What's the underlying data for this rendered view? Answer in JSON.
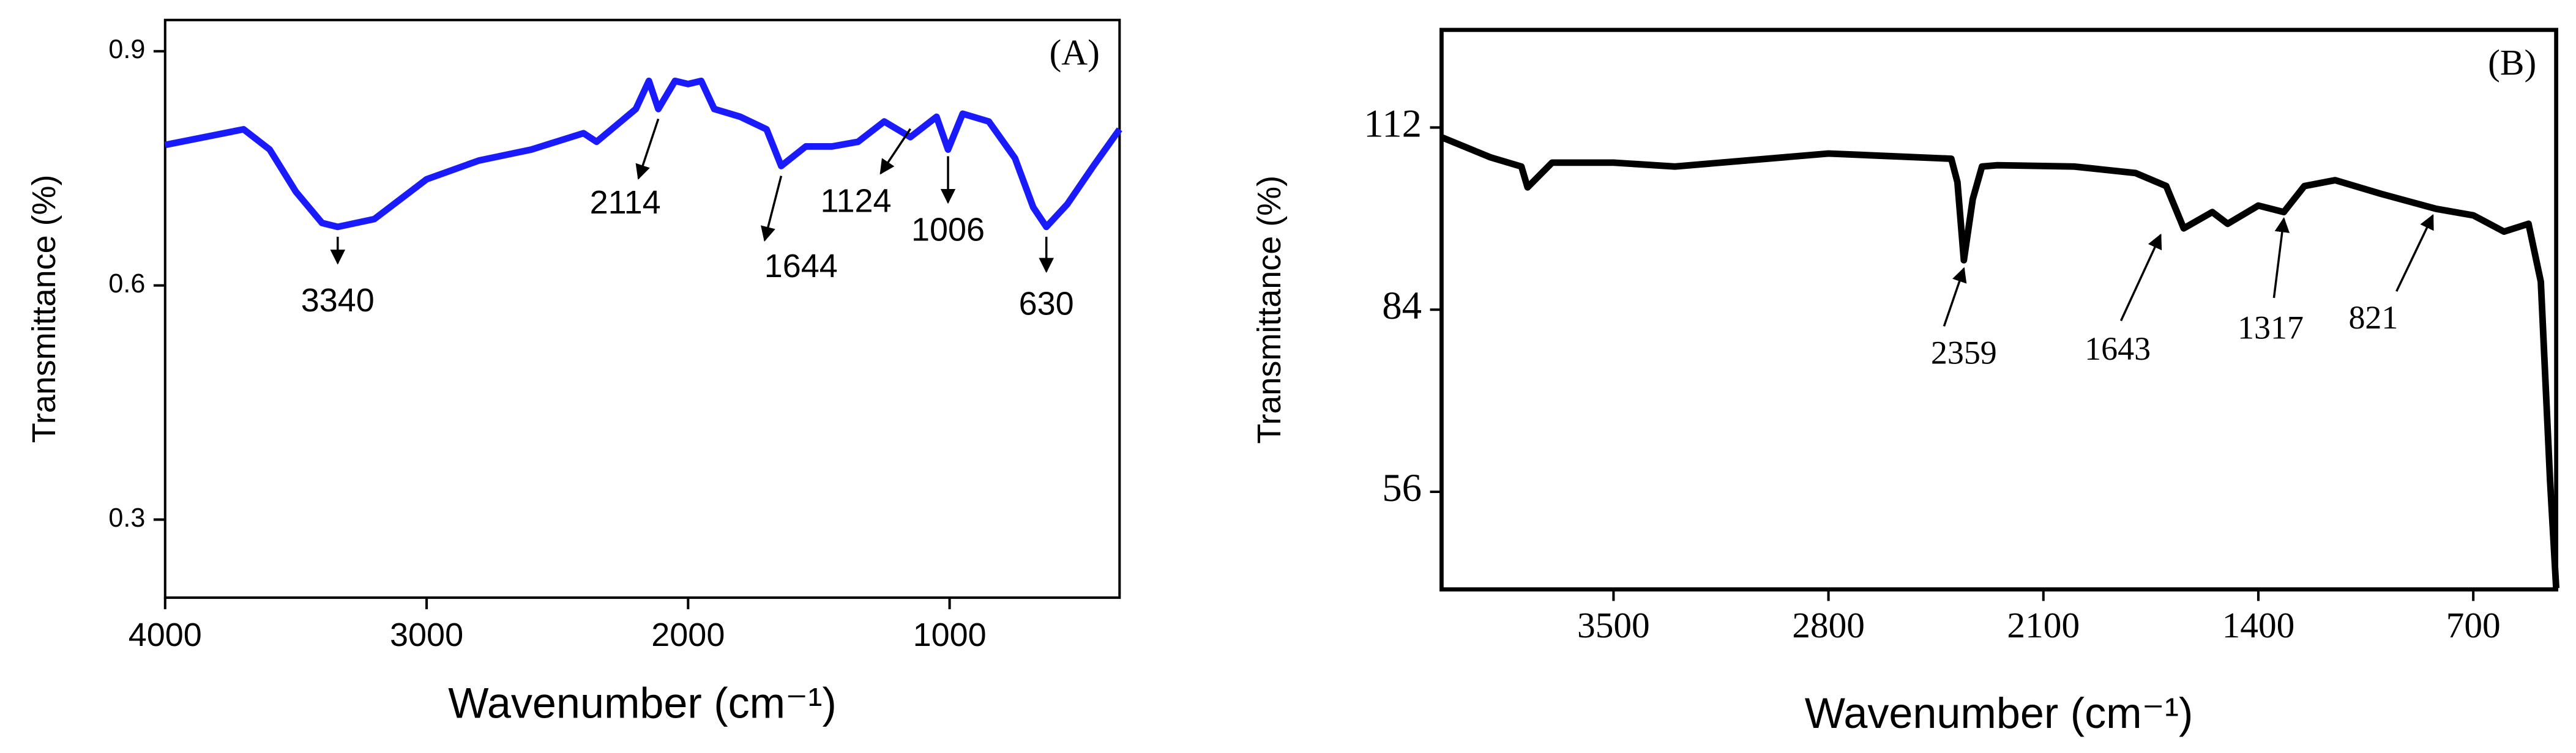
{
  "chart_data": [
    {
      "type": "line",
      "panel_label": "(A)",
      "font": "sans",
      "x_label": "Wavenumber (cm⁻¹)",
      "y_label": "Transmittance (%)",
      "xlim": [
        4000,
        350
      ],
      "ylim": [
        0.2,
        0.94
      ],
      "xticks": [
        4000,
        3000,
        2000,
        1000
      ],
      "yticks": [
        0.3,
        0.6,
        0.9
      ],
      "x": [
        4000,
        3700,
        3600,
        3500,
        3400,
        3340,
        3200,
        3000,
        2800,
        2600,
        2400,
        2350,
        2200,
        2150,
        2114,
        2050,
        2000,
        1950,
        1900,
        1800,
        1700,
        1644,
        1550,
        1450,
        1350,
        1250,
        1150,
        1050,
        1006,
        950,
        850,
        750,
        680,
        630,
        550,
        450,
        350
      ],
      "series": [
        {
          "color": "#1a1aff",
          "values": [
            0.78,
            0.8,
            0.774,
            0.72,
            0.68,
            0.675,
            0.685,
            0.736,
            0.76,
            0.774,
            0.795,
            0.784,
            0.826,
            0.862,
            0.826,
            0.862,
            0.858,
            0.862,
            0.826,
            0.816,
            0.8,
            0.753,
            0.778,
            0.778,
            0.784,
            0.81,
            0.79,
            0.816,
            0.774,
            0.82,
            0.81,
            0.763,
            0.7,
            0.675,
            0.704,
            0.753,
            0.8
          ]
        }
      ],
      "annotations": [
        {
          "text": "3340",
          "x": 3340
        },
        {
          "text": "2114",
          "x": 2114
        },
        {
          "text": "1644",
          "x": 1644
        },
        {
          "text": "1124",
          "x": 1150
        },
        {
          "text": "1006",
          "x": 1006
        },
        {
          "text": "630",
          "x": 630
        }
      ]
    },
    {
      "type": "line",
      "panel_label": "(B)",
      "font": "serif",
      "x_label": "Wavenumber (cm⁻¹)",
      "y_label": "Transmittance (%)",
      "xlim": [
        4060,
        430
      ],
      "ylim": [
        41,
        127
      ],
      "xticks": [
        3500,
        2800,
        2100,
        1400,
        700
      ],
      "yticks": [
        56,
        84,
        112
      ],
      "x": [
        4060,
        3900,
        3800,
        3780,
        3700,
        3500,
        3300,
        3000,
        2800,
        2500,
        2400,
        2380,
        2359,
        2330,
        2300,
        2250,
        2000,
        1800,
        1700,
        1643,
        1550,
        1500,
        1400,
        1317,
        1250,
        1150,
        1000,
        821,
        700,
        600,
        520,
        480,
        450,
        430
      ],
      "series": [
        {
          "color": "#000000",
          "values": [
            110.5,
            107.4,
            106,
            102.8,
            106.6,
            106.6,
            106,
            107.2,
            108,
            107.4,
            107.2,
            103.6,
            91.6,
            101,
            106,
            106.2,
            106,
            105,
            103,
            96.5,
            99,
            97.2,
            100,
            99,
            103,
            103.9,
            101.8,
            99.5,
            98.5,
            96,
            97.2,
            88.3,
            57.8,
            41.2
          ]
        }
      ],
      "annotations": [
        {
          "text": "2359",
          "x": 2359
        },
        {
          "text": "1643",
          "x": 1643
        },
        {
          "text": "1317",
          "x": 1317
        },
        {
          "text": "821",
          "x": 821
        }
      ]
    }
  ]
}
